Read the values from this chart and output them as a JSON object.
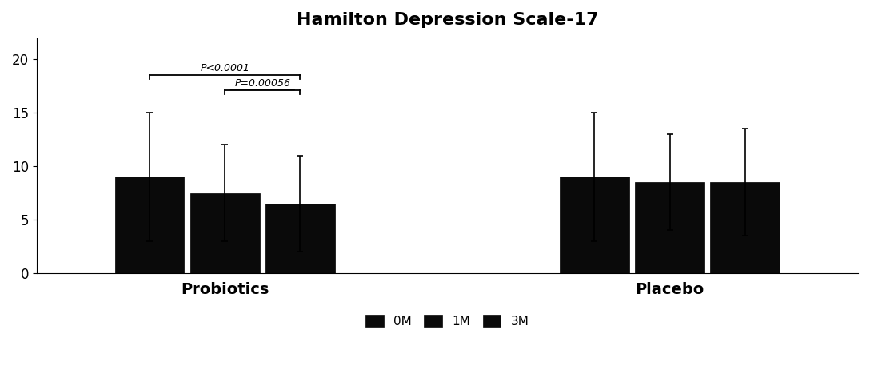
{
  "title": "Hamilton Depression Scale-17",
  "groups": [
    "Probiotics",
    "Placebo"
  ],
  "time_points": [
    "0M",
    "1M",
    "3M"
  ],
  "bar_values": {
    "Probiotics": [
      9.0,
      7.5,
      6.5
    ],
    "Placebo": [
      9.0,
      8.5,
      8.5
    ]
  },
  "bar_errors": {
    "Probiotics": [
      6.0,
      4.5,
      4.5
    ],
    "Placebo": [
      6.0,
      4.5,
      5.0
    ]
  },
  "bar_colors": [
    "#0a0a0a",
    "#0a0a0a",
    "#0a0a0a"
  ],
  "bar_width": 0.22,
  "ylim": [
    0,
    22
  ],
  "yticks": [
    0,
    5,
    10,
    15,
    20
  ],
  "sig1_label": "P<0.0001",
  "sig2_label": "P=0.00056",
  "legend_labels": [
    "0M",
    "1M",
    "3M"
  ],
  "background_color": "#ffffff",
  "title_fontsize": 16,
  "axis_label_fontsize": 14,
  "tick_fontsize": 12,
  "legend_fontsize": 11
}
